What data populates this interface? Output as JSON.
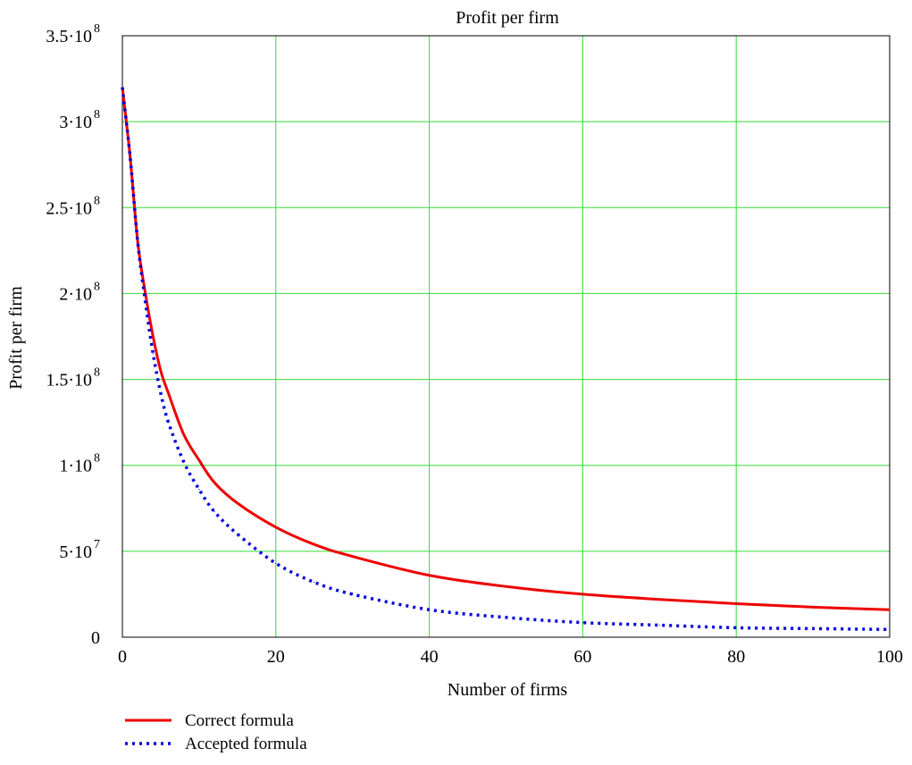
{
  "chart_data": {
    "type": "line",
    "title": "Profit per firm",
    "xlabel": "Number of firms",
    "ylabel": "Profit per firm",
    "xlim": [
      0,
      100
    ],
    "ylim": [
      0,
      350000000
    ],
    "grid": true,
    "grid_color": "#33dd33",
    "x_ticks": [
      {
        "value": 0,
        "label": "0"
      },
      {
        "value": 20,
        "label": "20"
      },
      {
        "value": 40,
        "label": "40"
      },
      {
        "value": 60,
        "label": "60"
      },
      {
        "value": 80,
        "label": "80"
      },
      {
        "value": 100,
        "label": "100"
      }
    ],
    "y_ticks": [
      {
        "value": 0,
        "label": "0",
        "exp": ""
      },
      {
        "value": 50000000,
        "label": "5·10",
        "exp": "7"
      },
      {
        "value": 100000000,
        "label": "1·10",
        "exp": "8"
      },
      {
        "value": 150000000,
        "label": "1.5·10",
        "exp": "8"
      },
      {
        "value": 200000000,
        "label": "2·10",
        "exp": "8"
      },
      {
        "value": 250000000,
        "label": "2.5·10",
        "exp": "8"
      },
      {
        "value": 300000000,
        "label": "3·10",
        "exp": "8"
      },
      {
        "value": 350000000,
        "label": "3.5·10",
        "exp": "8"
      }
    ],
    "legend_position": "bottom-left",
    "series": [
      {
        "name": "Correct formula",
        "color": "#ee0000",
        "style": "solid",
        "x": [
          0,
          1,
          2,
          3,
          4,
          5,
          6,
          8,
          10,
          12,
          15,
          20,
          25,
          30,
          40,
          50,
          60,
          70,
          80,
          90,
          100
        ],
        "y": [
          320000000,
          280000000,
          230000000,
          200000000,
          175000000,
          155000000,
          142000000,
          118000000,
          103000000,
          90000000,
          78000000,
          64000000,
          54000000,
          47000000,
          36000000,
          29500000,
          25000000,
          22000000,
          19500000,
          17500000,
          16000000
        ]
      },
      {
        "name": "Accepted formula",
        "color": "#0000dd",
        "style": "dotted",
        "x": [
          0,
          1,
          2,
          3,
          4,
          5,
          6,
          8,
          10,
          12,
          15,
          20,
          25,
          30,
          40,
          50,
          60,
          70,
          80,
          90,
          100
        ],
        "y": [
          320000000,
          280000000,
          230000000,
          195000000,
          165000000,
          142000000,
          125000000,
          102000000,
          86000000,
          73000000,
          60000000,
          43000000,
          32000000,
          25000000,
          16000000,
          11500000,
          8500000,
          7000000,
          5500000,
          5000000,
          4500000
        ]
      }
    ]
  }
}
